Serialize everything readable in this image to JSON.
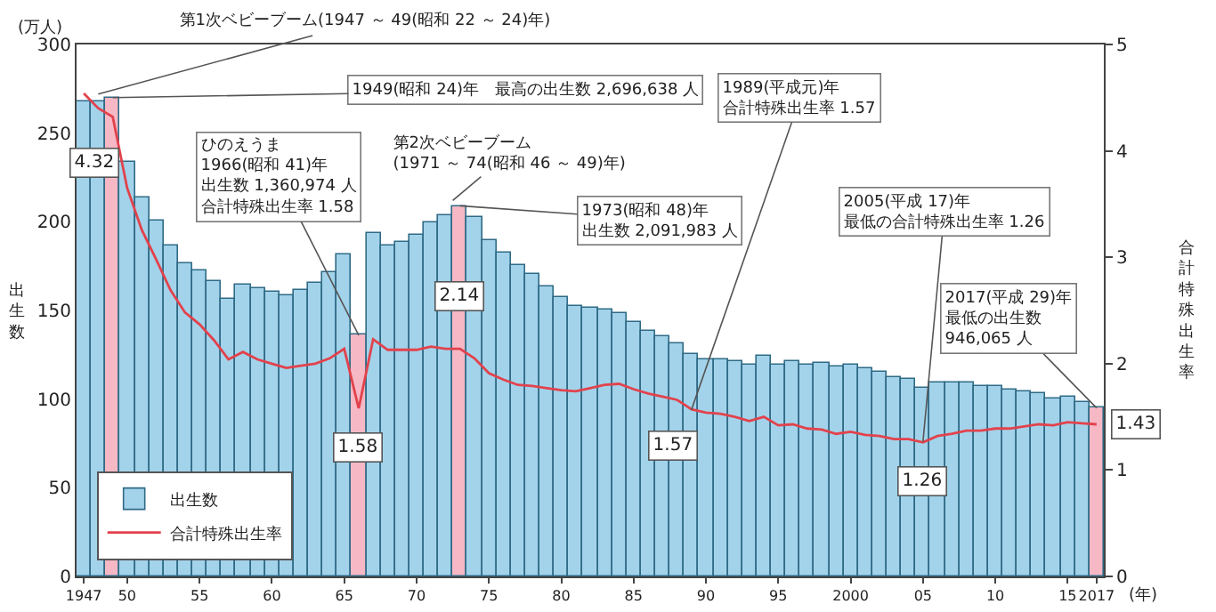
{
  "chart_data": {
    "type": "bar",
    "ylabel": "出生数",
    "y2label": "合計特殊出生率",
    "xlabel": "(年)",
    "x": [
      1947,
      1948,
      1949,
      1950,
      1951,
      1952,
      1953,
      1954,
      1955,
      1956,
      1957,
      1958,
      1959,
      1960,
      1961,
      1962,
      1963,
      1964,
      1965,
      1966,
      1967,
      1968,
      1969,
      1970,
      1971,
      1972,
      1973,
      1974,
      1975,
      1976,
      1977,
      1978,
      1979,
      1980,
      1981,
      1982,
      1983,
      1984,
      1985,
      1986,
      1987,
      1988,
      1989,
      1990,
      1991,
      1992,
      1993,
      1994,
      1995,
      1996,
      1997,
      1998,
      1999,
      2000,
      2001,
      2002,
      2003,
      2004,
      2005,
      2006,
      2007,
      2008,
      2009,
      2010,
      2011,
      2012,
      2013,
      2014,
      2015,
      2016,
      2017
    ],
    "series": [
      {
        "name": "出生数",
        "colors": [
          "#a3d3ea",
          "#a3d3ea",
          "#f6b8c4",
          "#a3d3ea",
          "#a3d3ea",
          "#a3d3ea",
          "#a3d3ea",
          "#a3d3ea",
          "#a3d3ea",
          "#a3d3ea",
          "#a3d3ea",
          "#a3d3ea",
          "#a3d3ea",
          "#a3d3ea",
          "#a3d3ea",
          "#a3d3ea",
          "#a3d3ea",
          "#a3d3ea",
          "#a3d3ea",
          "#f6b8c4",
          "#a3d3ea",
          "#a3d3ea",
          "#a3d3ea",
          "#a3d3ea",
          "#a3d3ea",
          "#a3d3ea",
          "#f6b8c4",
          "#a3d3ea",
          "#a3d3ea",
          "#a3d3ea",
          "#a3d3ea",
          "#a3d3ea",
          "#a3d3ea",
          "#a3d3ea",
          "#a3d3ea",
          "#a3d3ea",
          "#a3d3ea",
          "#a3d3ea",
          "#a3d3ea",
          "#a3d3ea",
          "#a3d3ea",
          "#a3d3ea",
          "#a3d3ea",
          "#a3d3ea",
          "#a3d3ea",
          "#a3d3ea",
          "#a3d3ea",
          "#a3d3ea",
          "#a3d3ea",
          "#a3d3ea",
          "#a3d3ea",
          "#a3d3ea",
          "#a3d3ea",
          "#a3d3ea",
          "#a3d3ea",
          "#a3d3ea",
          "#a3d3ea",
          "#a3d3ea",
          "#a3d3ea",
          "#a3d3ea",
          "#a3d3ea",
          "#a3d3ea",
          "#a3d3ea",
          "#a3d3ea",
          "#a3d3ea",
          "#a3d3ea",
          "#a3d3ea",
          "#a3d3ea",
          "#a3d3ea",
          "#a3d3ea",
          "#f6b8c4"
        ],
        "values": [
          268,
          268,
          270,
          234,
          214,
          201,
          187,
          177,
          173,
          167,
          157,
          165,
          163,
          161,
          159,
          162,
          166,
          172,
          182,
          136,
          194,
          187,
          189,
          193,
          200,
          204,
          209,
          203,
          190,
          183,
          176,
          171,
          164,
          158,
          153,
          152,
          151,
          149,
          143,
          138,
          135,
          131,
          125,
          122,
          122,
          121,
          119,
          124,
          119,
          121,
          119,
          120,
          118,
          119,
          117,
          115,
          112,
          111,
          106,
          109,
          109,
          109,
          107,
          107,
          105,
          104,
          103,
          100,
          101,
          98,
          95
        ]
      },
      {
        "name": "合計特殊出生率",
        "type": "line",
        "axis": "y2",
        "color": "#e2424c",
        "marker": "none",
        "line_style": "solid",
        "values": [
          4.54,
          4.4,
          4.32,
          3.65,
          3.26,
          2.98,
          2.69,
          2.48,
          2.37,
          2.22,
          2.04,
          2.11,
          2.04,
          2.0,
          1.96,
          1.98,
          2.0,
          2.05,
          2.14,
          1.58,
          2.23,
          2.13,
          2.13,
          2.13,
          2.16,
          2.14,
          2.14,
          2.05,
          1.91,
          1.85,
          1.8,
          1.79,
          1.77,
          1.75,
          1.74,
          1.77,
          1.8,
          1.81,
          1.76,
          1.72,
          1.69,
          1.66,
          1.57,
          1.54,
          1.53,
          1.5,
          1.46,
          1.5,
          1.42,
          1.43,
          1.39,
          1.38,
          1.34,
          1.36,
          1.33,
          1.32,
          1.29,
          1.29,
          1.26,
          1.32,
          1.34,
          1.37,
          1.37,
          1.39,
          1.39,
          1.41,
          1.43,
          1.42,
          1.45,
          1.44,
          1.43
        ],
        "value_labels": [
          null,
          null,
          "4.32",
          null,
          null,
          null,
          null,
          null,
          null,
          null,
          null,
          null,
          null,
          null,
          null,
          null,
          null,
          null,
          null,
          "1.58",
          null,
          null,
          null,
          null,
          null,
          null,
          "2.14",
          null,
          null,
          null,
          null,
          null,
          null,
          null,
          null,
          null,
          null,
          null,
          null,
          null,
          null,
          null,
          "1.57",
          null,
          null,
          null,
          null,
          null,
          null,
          null,
          null,
          null,
          null,
          null,
          null,
          null,
          null,
          null,
          "1.26",
          null,
          null,
          null,
          null,
          null,
          null,
          null,
          null,
          null,
          null,
          null,
          "1.43"
        ]
      }
    ],
    "xlim": [
      1946.5,
      2017.5
    ],
    "xticks": [
      {
        "value": 1947,
        "label": "1947"
      },
      {
        "value": 1950,
        "label": "50"
      },
      {
        "value": 1955,
        "label": "55"
      },
      {
        "value": 1960,
        "label": "60"
      },
      {
        "value": 1965,
        "label": "65"
      },
      {
        "value": 1970,
        "label": "70"
      },
      {
        "value": 1975,
        "label": "75"
      },
      {
        "value": 1980,
        "label": "80"
      },
      {
        "value": 1985,
        "label": "85"
      },
      {
        "value": 1990,
        "label": "90"
      },
      {
        "value": 1995,
        "label": "95"
      },
      {
        "value": 2000,
        "label": "2000"
      },
      {
        "value": 2005,
        "label": "05"
      },
      {
        "value": 2010,
        "label": "10"
      },
      {
        "value": 2015,
        "label": "15"
      },
      {
        "value": 2017,
        "label": "2017"
      }
    ],
    "ylim": [
      0,
      300
    ],
    "yticks": [
      0,
      50,
      100,
      150,
      200,
      250,
      300
    ],
    "y2lim": [
      0,
      5
    ],
    "y2ticks": [
      0,
      1,
      2,
      3,
      4,
      5
    ],
    "grid": false,
    "legend": "bottom left",
    "annotations": [
      "(万人)",
      {
        "text": "第1次ベビーブーム(1947 ～ 49(昭和 22 ～ 24)年)",
        "x": 1948,
        "y": 272
      },
      {
        "text": "1949(昭和 24)年　最高の出生数 2,696,638 人",
        "x": 1949,
        "y": 270
      },
      {
        "text": "ひのえうま1966(昭和 41)年出生数 1,360,974 人合計特殊出生率 1.58",
        "x": 1966,
        "y": 136
      },
      {
        "text": "第2次ベビーブーム(1971 ～ 74(昭和 46 ～ 49)年)",
        "x": 1972.5,
        "y": 212
      },
      {
        "text": "1973(昭和 48)年出生数 2,091,983 人",
        "x": 1973,
        "y": 209
      },
      {
        "text": "1989(平成元)年合計特殊出生率 1.57",
        "x": 1989,
        "y": 94
      },
      {
        "text": "2005(平成 17)年最低の合計特殊出生率 1.26",
        "x": 2005,
        "y": 76
      },
      {
        "text": "2017(平成 29)年最低の出生数946,065 人",
        "x": 2017,
        "y": 95
      }
    ]
  }
}
